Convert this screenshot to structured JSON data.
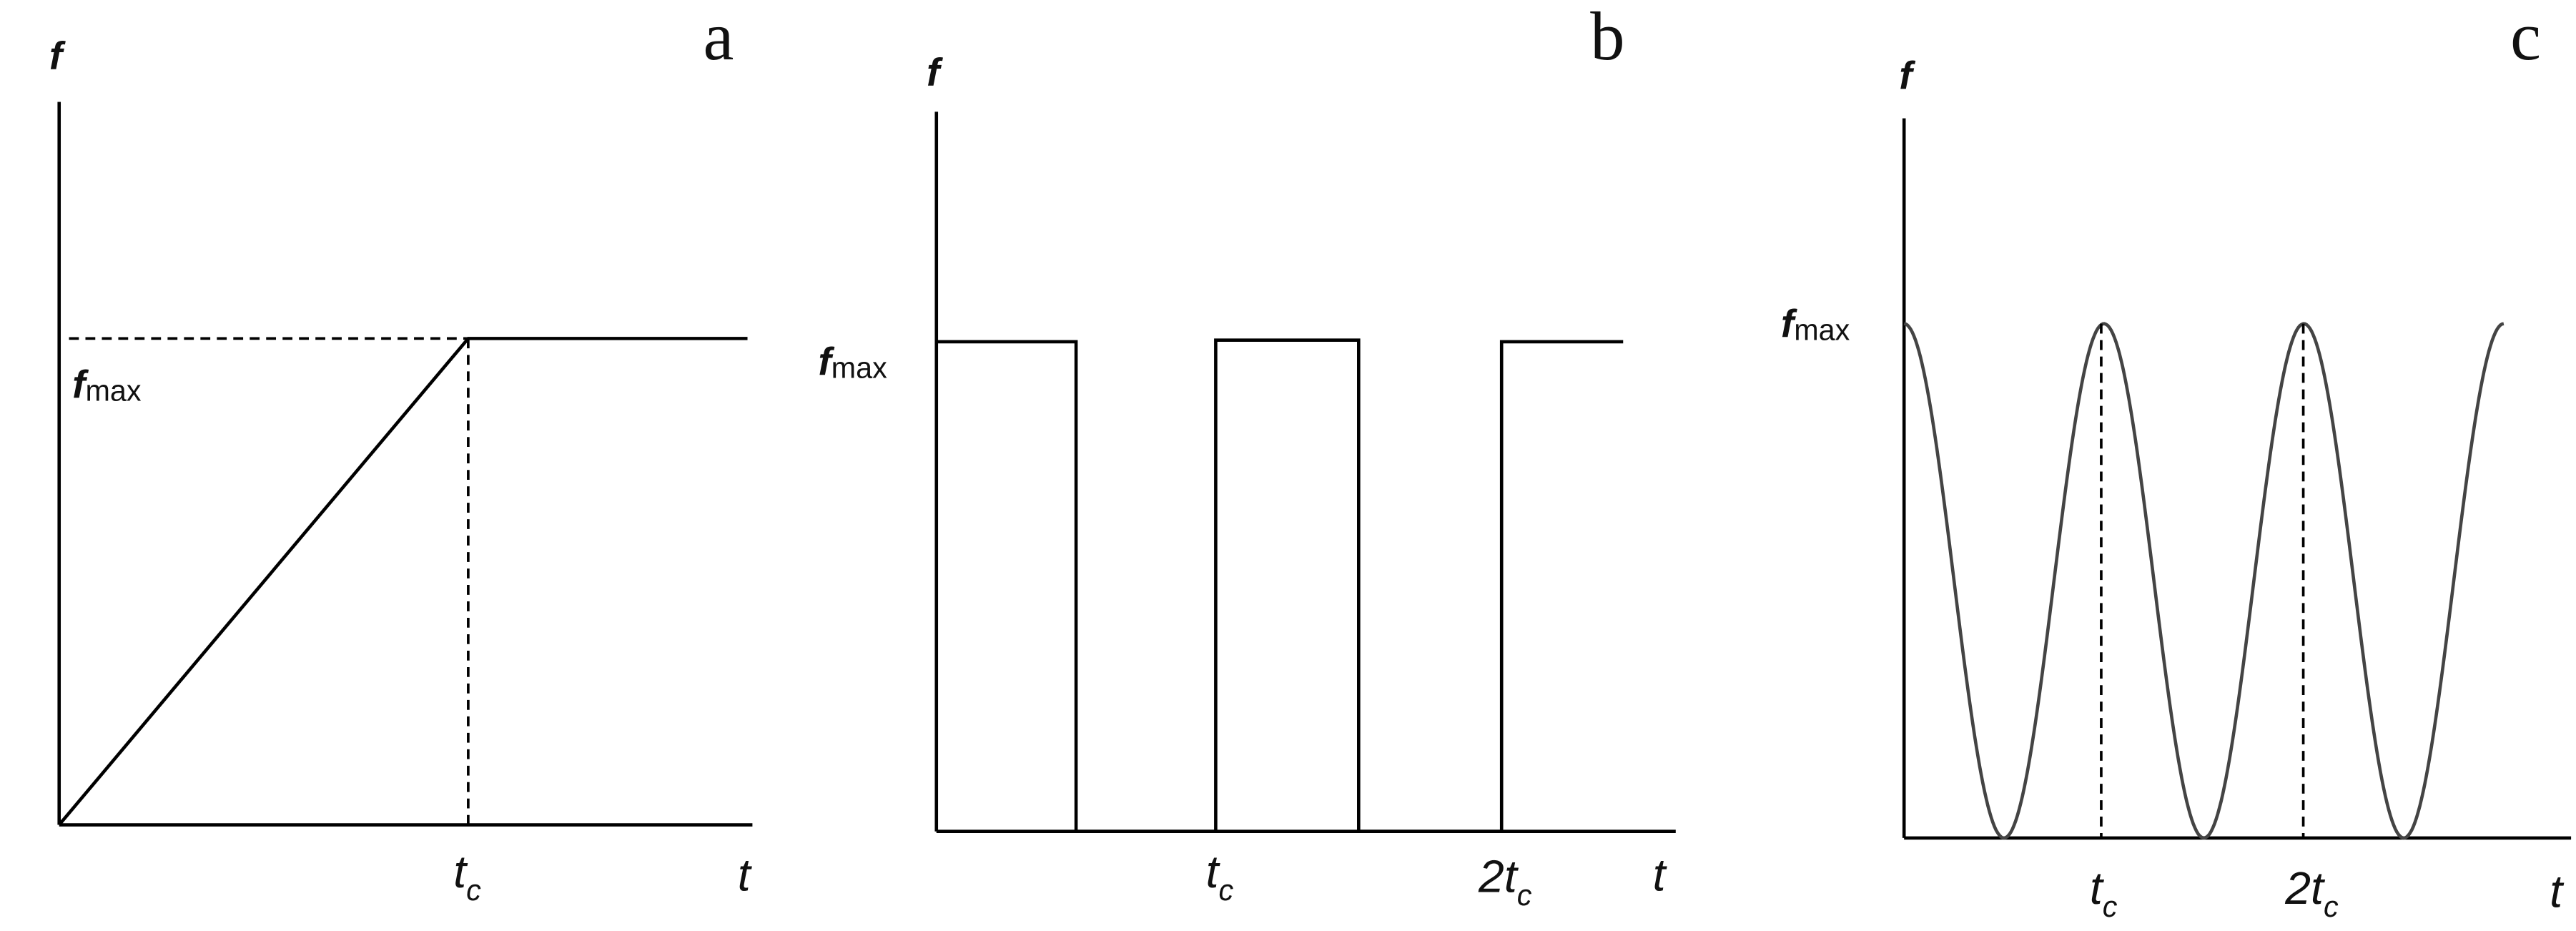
{
  "panels": [
    {
      "label": "a",
      "y_axis": "f",
      "x_axis": "t",
      "y_marks": [
        {
          "main": "f",
          "sub": "max"
        }
      ],
      "x_marks": [
        {
          "main": "t",
          "sub": "c"
        }
      ]
    },
    {
      "label": "b",
      "y_axis": "f",
      "x_axis": "t",
      "y_marks": [
        {
          "main": "f",
          "sub": "max"
        }
      ],
      "x_marks": [
        {
          "main": "t",
          "sub": "c"
        },
        {
          "main": "2t",
          "sub": "c"
        }
      ]
    },
    {
      "label": "c",
      "y_axis": "f",
      "x_axis": "t",
      "y_marks": [
        {
          "main": "f",
          "sub": "max"
        }
      ],
      "x_marks": [
        {
          "main": "t",
          "sub": "c"
        },
        {
          "main": "2t",
          "sub": "c"
        }
      ]
    }
  ]
}
